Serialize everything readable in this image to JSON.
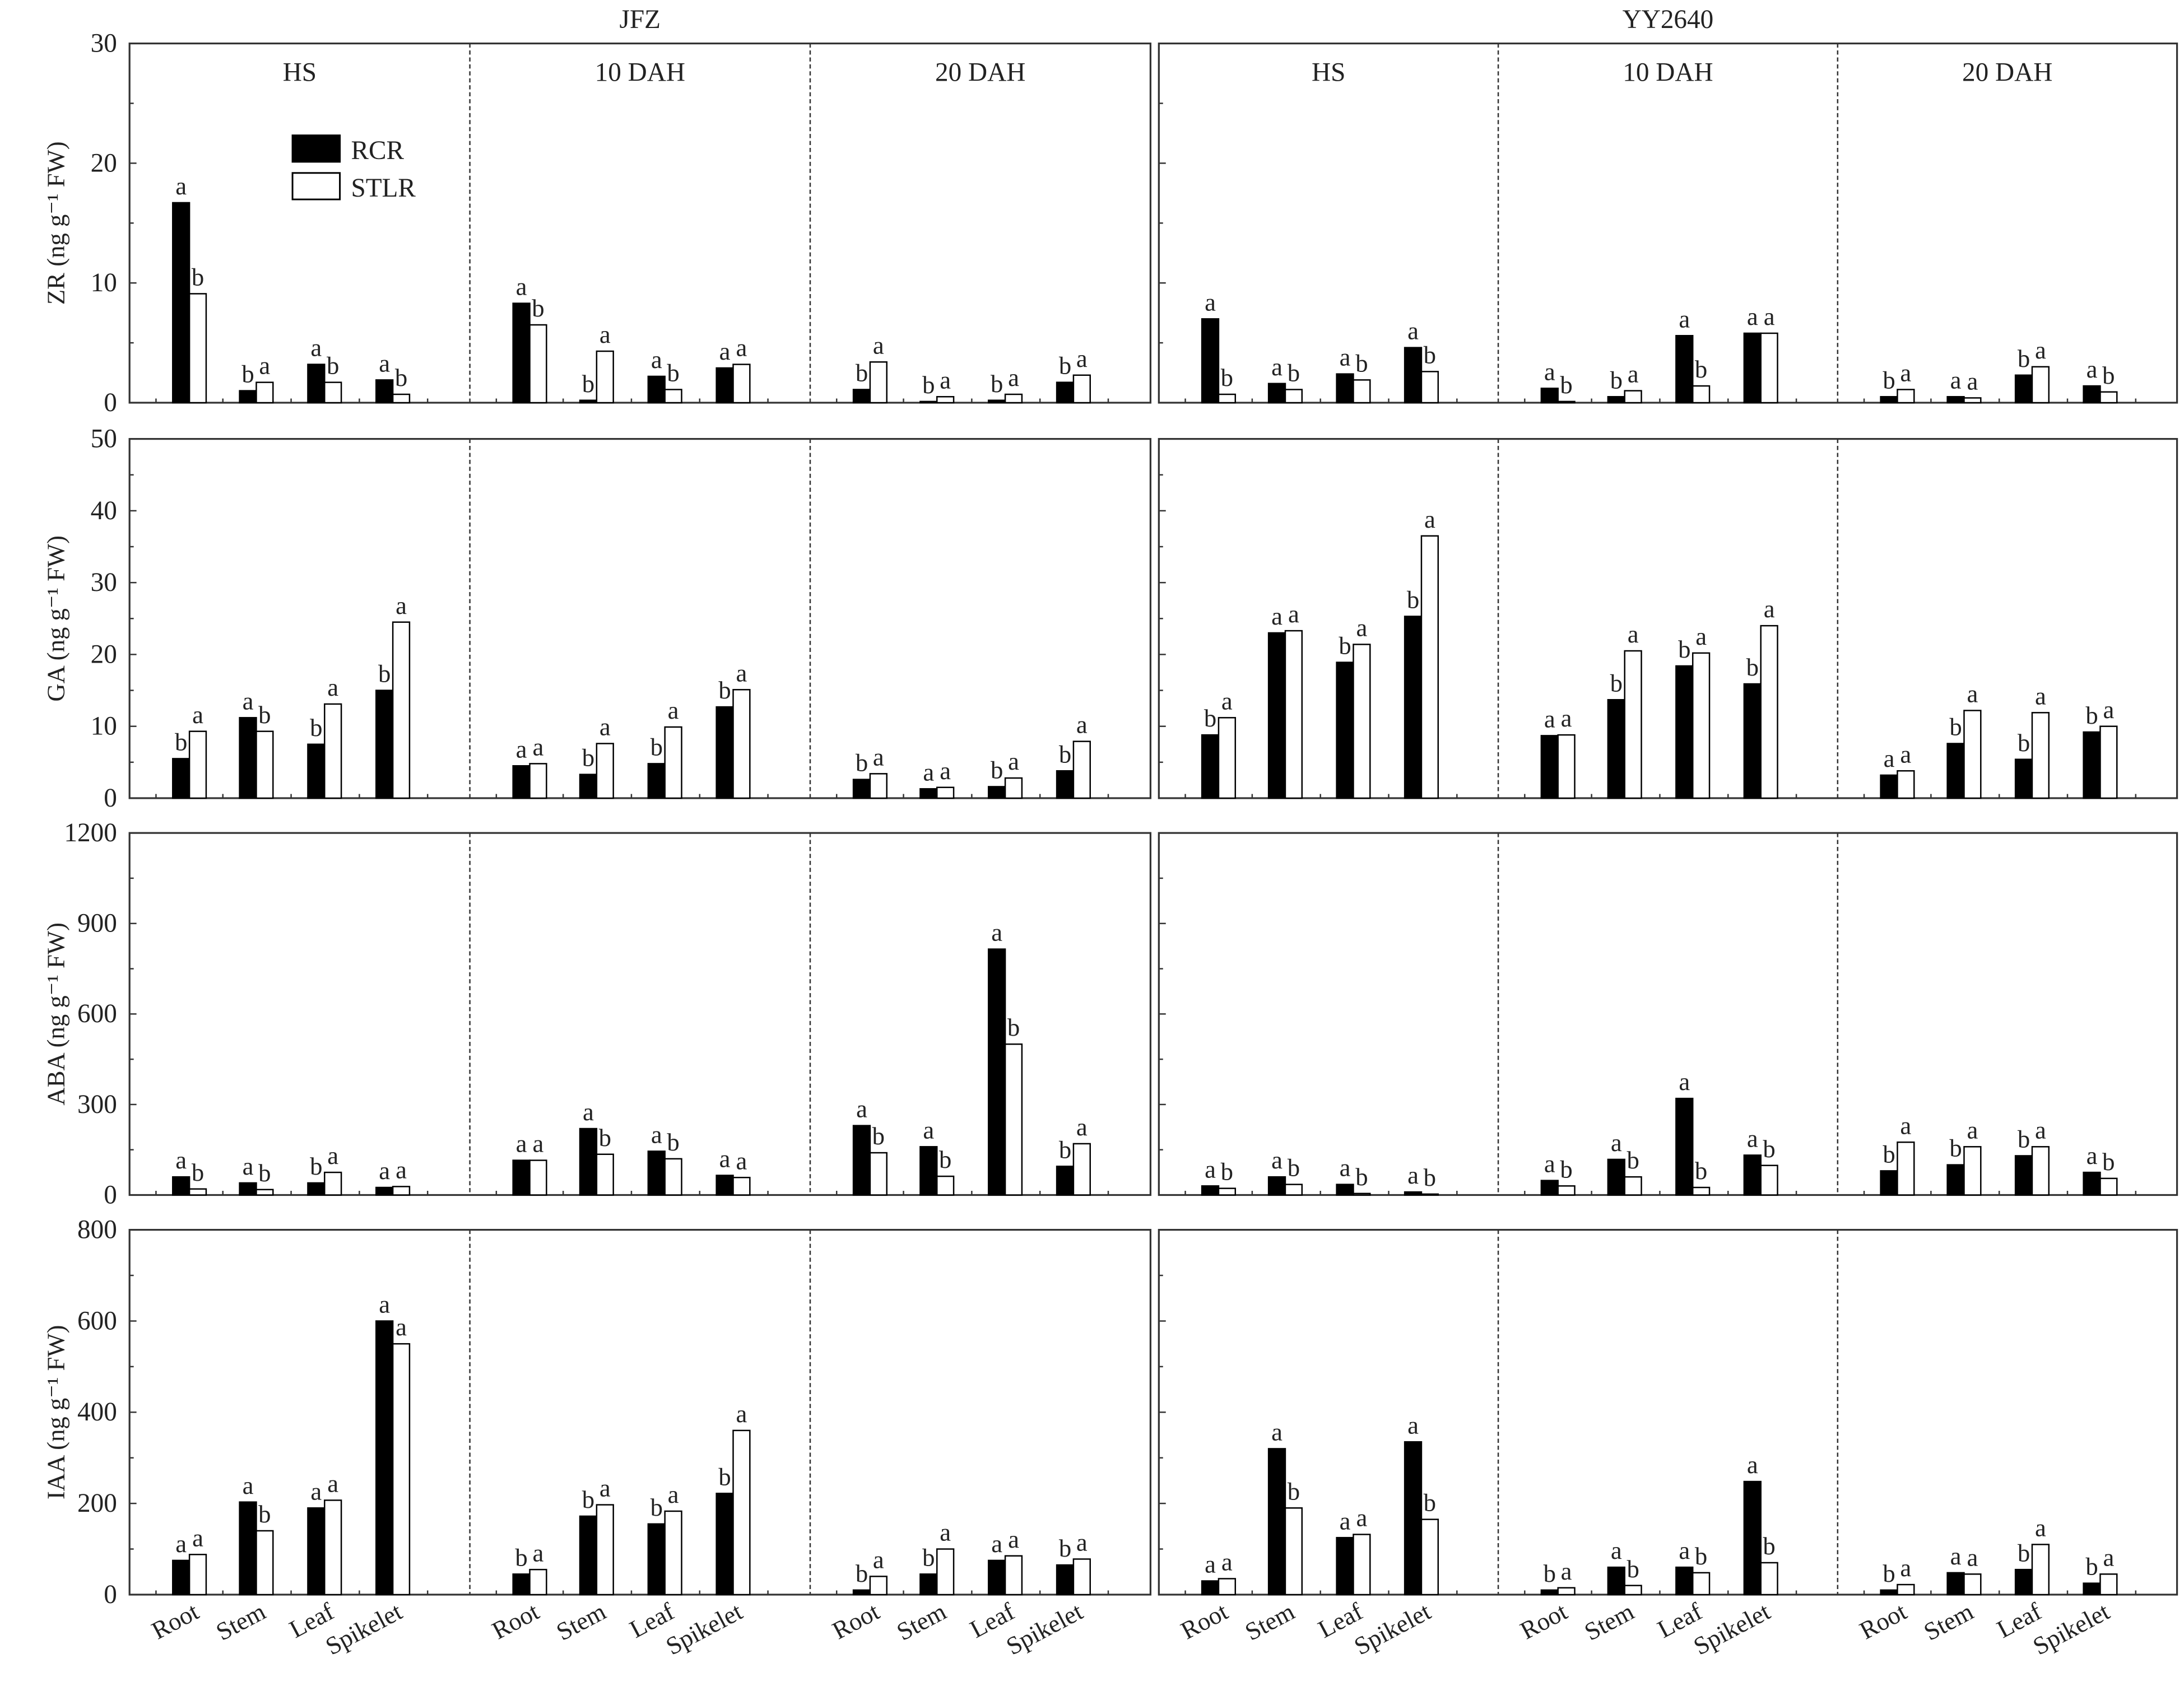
{
  "chart_data": {
    "type": "bar",
    "cultivars": [
      "JFZ",
      "YY2640"
    ],
    "stages": [
      "HS",
      "10 DAH",
      "20 DAH"
    ],
    "categories": [
      "Root",
      "Stem",
      "Leaf",
      "Spikelet"
    ],
    "legend": {
      "position": "top-left of first panel",
      "series": [
        {
          "name": "RCR",
          "color": "#000000"
        },
        {
          "name": "STLR",
          "color": "#ffffff"
        }
      ]
    },
    "grid": false,
    "panels": [
      {
        "hormone": "ZR",
        "ylabel": "ZR (ng g⁻¹ FW)",
        "ylim": [
          0,
          30
        ],
        "yticks": [
          "0",
          "10",
          "20",
          "30"
        ],
        "data": {
          "JFZ": {
            "HS": {
              "RCR": [
                16.7,
                1.0,
                3.2,
                1.9
              ],
              "STLR": [
                9.1,
                1.7,
                1.7,
                0.7
              ],
              "letters_RCR": [
                "a",
                "b",
                "a",
                "a"
              ],
              "letters_STLR": [
                "b",
                "a",
                "b",
                "b"
              ]
            },
            "10 DAH": {
              "RCR": [
                8.3,
                0.2,
                2.2,
                2.9
              ],
              "STLR": [
                6.5,
                4.3,
                1.1,
                3.2
              ],
              "letters_RCR": [
                "a",
                "b",
                "a",
                "a"
              ],
              "letters_STLR": [
                "b",
                "a",
                "b",
                "a"
              ]
            },
            "20 DAH": {
              "RCR": [
                1.1,
                0.1,
                0.2,
                1.7
              ],
              "STLR": [
                3.4,
                0.5,
                0.7,
                2.3
              ],
              "letters_RCR": [
                "b",
                "b",
                "b",
                "b"
              ],
              "letters_STLR": [
                "a",
                "a",
                "a",
                "a"
              ]
            }
          },
          "YY2640": {
            "HS": {
              "RCR": [
                7.0,
                1.6,
                2.4,
                4.6
              ],
              "STLR": [
                0.7,
                1.1,
                1.9,
                2.6
              ],
              "letters_RCR": [
                "a",
                "a",
                "a",
                "a"
              ],
              "letters_STLR": [
                "b",
                "b",
                "b",
                "b"
              ]
            },
            "10 DAH": {
              "RCR": [
                1.2,
                0.5,
                5.6,
                5.8
              ],
              "STLR": [
                0.1,
                1.0,
                1.4,
                5.8
              ],
              "letters_RCR": [
                "a",
                "b",
                "a",
                "a"
              ],
              "letters_STLR": [
                "b",
                "a",
                "b",
                "a"
              ]
            },
            "20 DAH": {
              "RCR": [
                0.5,
                0.5,
                2.3,
                1.4
              ],
              "STLR": [
                1.1,
                0.4,
                3.0,
                0.9
              ],
              "letters_RCR": [
                "b",
                "a",
                "b",
                "a"
              ],
              "letters_STLR": [
                "a",
                "a",
                "a",
                "b"
              ]
            }
          }
        }
      },
      {
        "hormone": "GA",
        "ylabel": "GA (ng g⁻¹ FW)",
        "ylim": [
          0,
          50
        ],
        "yticks": [
          "0",
          "10",
          "20",
          "30",
          "40",
          "50"
        ],
        "data": {
          "JFZ": {
            "HS": {
              "RCR": [
                5.5,
                11.2,
                7.5,
                15.0
              ],
              "STLR": [
                9.3,
                9.3,
                13.1,
                24.5
              ],
              "letters_RCR": [
                "b",
                "a",
                "b",
                "b"
              ],
              "letters_STLR": [
                "a",
                "b",
                "a",
                "a"
              ]
            },
            "10 DAH": {
              "RCR": [
                4.5,
                3.3,
                4.8,
                12.7
              ],
              "STLR": [
                4.8,
                7.6,
                9.9,
                15.1
              ],
              "letters_RCR": [
                "a",
                "b",
                "b",
                "b"
              ],
              "letters_STLR": [
                "a",
                "a",
                "a",
                "a"
              ]
            },
            "20 DAH": {
              "RCR": [
                2.6,
                1.3,
                1.6,
                3.8
              ],
              "STLR": [
                3.4,
                1.5,
                2.8,
                7.9
              ],
              "letters_RCR": [
                "b",
                "a",
                "b",
                "b"
              ],
              "letters_STLR": [
                "a",
                "a",
                "a",
                "a"
              ]
            }
          },
          "YY2640": {
            "HS": {
              "RCR": [
                8.8,
                23.0,
                18.9,
                25.3
              ],
              "STLR": [
                11.2,
                23.3,
                21.4,
                36.5
              ],
              "letters_RCR": [
                "b",
                "a",
                "b",
                "b"
              ],
              "letters_STLR": [
                "a",
                "a",
                "a",
                "a"
              ]
            },
            "10 DAH": {
              "RCR": [
                8.7,
                13.7,
                18.4,
                15.9
              ],
              "STLR": [
                8.8,
                20.5,
                20.2,
                24.0
              ],
              "letters_RCR": [
                "a",
                "b",
                "b",
                "b"
              ],
              "letters_STLR": [
                "a",
                "a",
                "a",
                "a"
              ]
            },
            "20 DAH": {
              "RCR": [
                3.2,
                7.6,
                5.4,
                9.2
              ],
              "STLR": [
                3.8,
                12.2,
                11.9,
                10.0
              ],
              "letters_RCR": [
                "a",
                "b",
                "b",
                "b"
              ],
              "letters_STLR": [
                "a",
                "a",
                "a",
                "a"
              ]
            }
          }
        }
      },
      {
        "hormone": "ABA",
        "ylabel": "ABA (ng g⁻¹ FW)",
        "ylim": [
          0,
          1200
        ],
        "yticks": [
          "0",
          "300",
          "600",
          "900",
          "1200"
        ],
        "data": {
          "JFZ": {
            "HS": {
              "RCR": [
                60,
                40,
                40,
                25
              ],
              "STLR": [
                20,
                18,
                75,
                28
              ],
              "letters_RCR": [
                "a",
                "a",
                "b",
                "a"
              ],
              "letters_STLR": [
                "b",
                "b",
                "a",
                "a"
              ]
            },
            "10 DAH": {
              "RCR": [
                115,
                220,
                145,
                65
              ],
              "STLR": [
                115,
                135,
                120,
                58
              ],
              "letters_RCR": [
                "a",
                "a",
                "a",
                "a"
              ],
              "letters_STLR": [
                "a",
                "b",
                "b",
                "a"
              ]
            },
            "20 DAH": {
              "RCR": [
                230,
                160,
                815,
                95
              ],
              "STLR": [
                140,
                62,
                500,
                170
              ],
              "letters_RCR": [
                "a",
                "a",
                "a",
                "b"
              ],
              "letters_STLR": [
                "b",
                "b",
                "b",
                "a"
              ]
            }
          },
          "YY2640": {
            "HS": {
              "RCR": [
                30,
                60,
                35,
                10
              ],
              "STLR": [
                22,
                35,
                5,
                3
              ],
              "letters_RCR": [
                "a",
                "a",
                "a",
                "a"
              ],
              "letters_STLR": [
                "b",
                "b",
                "b",
                "b"
              ]
            },
            "10 DAH": {
              "RCR": [
                48,
                118,
                320,
                132
              ],
              "STLR": [
                30,
                60,
                25,
                98
              ],
              "letters_RCR": [
                "a",
                "a",
                "a",
                "a"
              ],
              "letters_STLR": [
                "b",
                "b",
                "b",
                "b"
              ]
            },
            "20 DAH": {
              "RCR": [
                80,
                100,
                130,
                75
              ],
              "STLR": [
                175,
                160,
                160,
                55
              ],
              "letters_RCR": [
                "b",
                "b",
                "b",
                "a"
              ],
              "letters_STLR": [
                "a",
                "a",
                "a",
                "b"
              ]
            }
          }
        }
      },
      {
        "hormone": "IAA",
        "ylabel": "IAA (ng g⁻¹ FW)",
        "ylim": [
          0,
          800
        ],
        "yticks": [
          "0",
          "200",
          "400",
          "600",
          "800"
        ],
        "data": {
          "JFZ": {
            "HS": {
              "RCR": [
                75,
                203,
                190,
                600
              ],
              "STLR": [
                88,
                140,
                207,
                550
              ],
              "letters_RCR": [
                "a",
                "a",
                "a",
                "a"
              ],
              "letters_STLR": [
                "a",
                "b",
                "a",
                "a"
              ]
            },
            "10 DAH": {
              "RCR": [
                45,
                172,
                155,
                222
              ],
              "STLR": [
                55,
                197,
                183,
                360
              ],
              "letters_RCR": [
                "b",
                "b",
                "b",
                "b"
              ],
              "letters_STLR": [
                "a",
                "a",
                "a",
                "a"
              ]
            },
            "20 DAH": {
              "RCR": [
                10,
                45,
                75,
                65
              ],
              "STLR": [
                40,
                100,
                85,
                78
              ],
              "letters_RCR": [
                "b",
                "b",
                "a",
                "b"
              ],
              "letters_STLR": [
                "a",
                "a",
                "a",
                "a"
              ]
            }
          },
          "YY2640": {
            "HS": {
              "RCR": [
                30,
                320,
                125,
                335
              ],
              "STLR": [
                35,
                190,
                132,
                165
              ],
              "letters_RCR": [
                "a",
                "a",
                "a",
                "a"
              ],
              "letters_STLR": [
                "a",
                "b",
                "a",
                "b"
              ]
            },
            "10 DAH": {
              "RCR": [
                10,
                60,
                60,
                248
              ],
              "STLR": [
                15,
                20,
                48,
                70
              ],
              "letters_RCR": [
                "b",
                "a",
                "a",
                "a"
              ],
              "letters_STLR": [
                "a",
                "b",
                "b",
                "b"
              ]
            },
            "20 DAH": {
              "RCR": [
                10,
                48,
                55,
                25
              ],
              "STLR": [
                22,
                45,
                110,
                45
              ],
              "letters_RCR": [
                "b",
                "a",
                "b",
                "b"
              ],
              "letters_STLR": [
                "a",
                "a",
                "a",
                "a"
              ]
            }
          }
        }
      }
    ]
  }
}
